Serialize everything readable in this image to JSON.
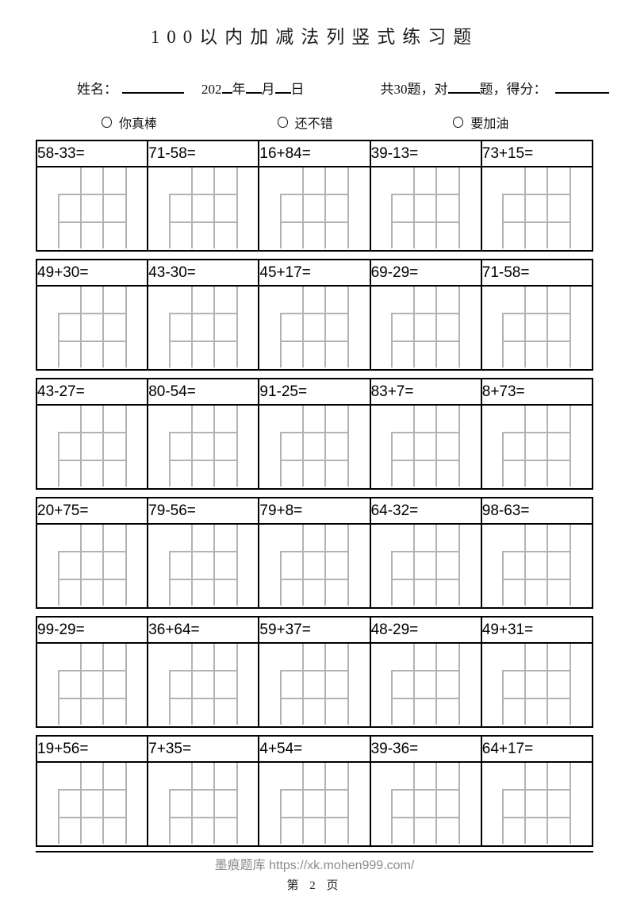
{
  "title": "100以内加减法列竖式练习题",
  "info": {
    "name_label": "姓名：",
    "year_prefix": "202",
    "year_suffix": "年",
    "month_suffix": "月",
    "day_suffix": "日",
    "score_prefix": "共30题，对",
    "score_mid": "题，得分："
  },
  "ratings": [
    {
      "label": "你真棒"
    },
    {
      "label": "还不错"
    },
    {
      "label": "要加油"
    }
  ],
  "problems": [
    [
      "58-33=",
      "71-58=",
      "16+84=",
      "39-13=",
      "73+15="
    ],
    [
      "49+30=",
      "43-30=",
      "45+17=",
      "69-29=",
      "71-58="
    ],
    [
      "43-27=",
      "80-54=",
      "91-25=",
      "83+7=",
      "8+73="
    ],
    [
      "20+75=",
      "79-56=",
      "79+8=",
      "64-32=",
      "98-63="
    ],
    [
      "99-29=",
      "36+64=",
      "59+37=",
      "48-29=",
      "49+31="
    ],
    [
      "19+56=",
      "7+35=",
      "4+54=",
      "39-36=",
      "64+17="
    ]
  ],
  "footer": {
    "site": "墨痕题库 https://xk.mohen999.com/",
    "page": "第 2 页"
  },
  "colors": {
    "ink": "#000000",
    "grid_line": "#b3b3b3",
    "footer_gray": "#8c8c8c"
  }
}
